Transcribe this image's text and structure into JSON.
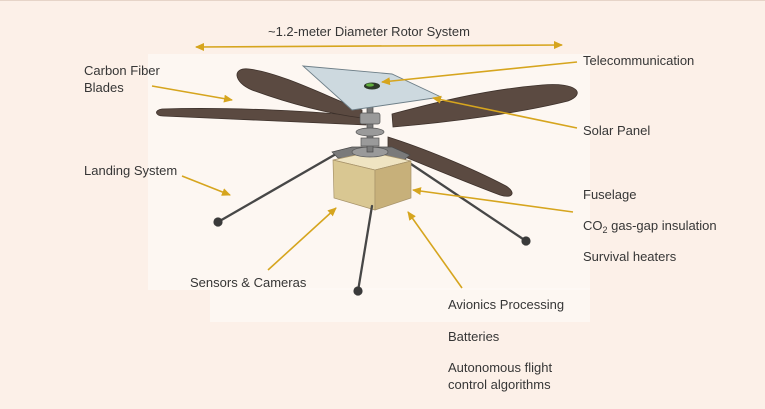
{
  "theme": {
    "background": "#FCF0E8",
    "arrow_color": "#D6A51E",
    "text_color": "#363636",
    "blade_color": "#5B4A41",
    "fuselage_color": "#D9C792",
    "solar_panel_color": "#CDD9DF"
  },
  "labels": {
    "rotor_system": "~1.2-meter Diameter Rotor System",
    "carbon_fiber_blades": [
      "Carbon Fiber",
      "Blades"
    ],
    "telecommunication": "Telecommunication",
    "solar_panel": "Solar Panel",
    "landing_system": "Landing System",
    "fuselage": "Fuselage",
    "co2_insulation": {
      "prefix": "CO",
      "subscript": "2",
      "suffix": " gas-gap insulation"
    },
    "survival_heaters": "Survival heaters",
    "sensors_cameras": "Sensors & Cameras",
    "avionics_processing": "Avionics Processing",
    "batteries": "Batteries",
    "autonomous_flight": [
      "Autonomous flight",
      "control algorithms"
    ]
  }
}
